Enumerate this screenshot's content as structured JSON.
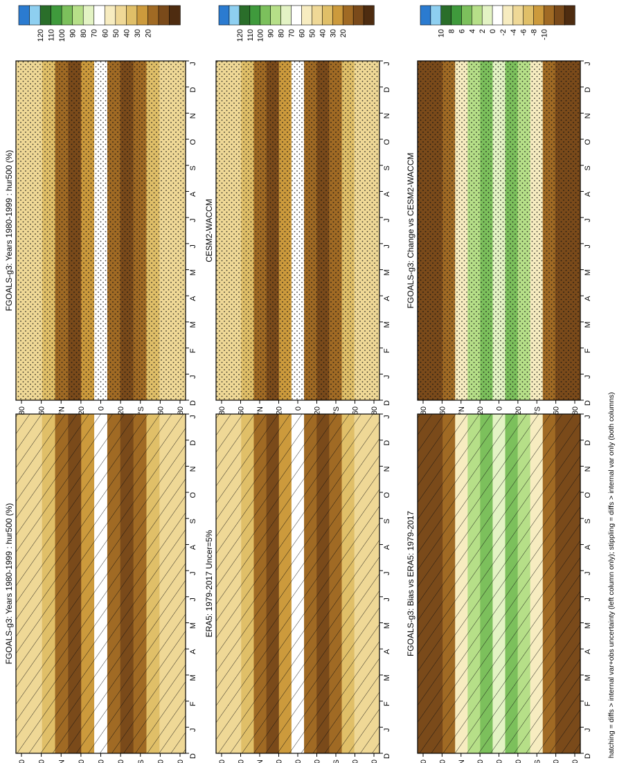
{
  "figure": {
    "footnote": "hatching = diffs > internal var+obs uncertainty (left column only); stippling = diffs > internal var only (both columns)"
  },
  "chart_data": [
    {
      "type": "heatmap",
      "title": "FGOALS-g3: Years 1980-1999 : hur500 (%)",
      "x_ticks": [
        "D",
        "J",
        "F",
        "M",
        "A",
        "M",
        "J",
        "J",
        "A",
        "S",
        "O",
        "N",
        "D",
        "J"
      ],
      "y_ticks": [
        "80",
        "60",
        "°N",
        "20",
        "0",
        "20",
        "°S",
        "60",
        "80"
      ],
      "colorbar": {
        "labels": [
          "120",
          "110",
          "100",
          "90",
          "80",
          "70",
          "60",
          "50",
          "40",
          "30",
          "20"
        ],
        "colors": [
          "#2b7bd0",
          "#8ecff0",
          "#2a6e2a",
          "#3f9a3c",
          "#7cc05c",
          "#b6df88",
          "#e3f3c4",
          "#ffffff",
          "#f7ecc0",
          "#efd896",
          "#e0bf68",
          "#cc9a3c",
          "#a06a24",
          "#7a4a1a",
          "#4e2c10"
        ]
      },
      "pattern": "hatch"
    },
    {
      "type": "heatmap",
      "title": "FGOALS-g3: Years 1980-1999 : hur500 (%)",
      "x_ticks": [
        "D",
        "J",
        "F",
        "M",
        "A",
        "M",
        "J",
        "J",
        "A",
        "S",
        "O",
        "N",
        "D",
        "J"
      ],
      "y_ticks": [
        "80",
        "60",
        "°N",
        "20",
        "0",
        "20",
        "°S",
        "60",
        "80"
      ],
      "colorbar": {
        "labels": [
          "120",
          "110",
          "100",
          "90",
          "80",
          "70",
          "60",
          "50",
          "40",
          "30",
          "20"
        ],
        "colors": [
          "#2b7bd0",
          "#8ecff0",
          "#2a6e2a",
          "#3f9a3c",
          "#7cc05c",
          "#b6df88",
          "#e3f3c4",
          "#ffffff",
          "#f7ecc0",
          "#efd896",
          "#e0bf68",
          "#cc9a3c",
          "#a06a24",
          "#7a4a1a",
          "#4e2c10"
        ]
      },
      "pattern": "dots"
    },
    {
      "type": "heatmap",
      "title": "ERA5: 1979-2017 Uncer=5%",
      "x_ticks": [
        "D",
        "J",
        "F",
        "M",
        "A",
        "M",
        "J",
        "J",
        "A",
        "S",
        "O",
        "N",
        "D",
        "J"
      ],
      "y_ticks": [
        "80",
        "60",
        "°N",
        "20",
        "0",
        "20",
        "°S",
        "60",
        "80"
      ],
      "colorbar": {
        "labels": [
          "120",
          "110",
          "100",
          "90",
          "80",
          "70",
          "60",
          "50",
          "40",
          "30",
          "20"
        ],
        "colors": [
          "#2b7bd0",
          "#8ecff0",
          "#2a6e2a",
          "#3f9a3c",
          "#7cc05c",
          "#b6df88",
          "#e3f3c4",
          "#ffffff",
          "#f7ecc0",
          "#efd896",
          "#e0bf68",
          "#cc9a3c",
          "#a06a24",
          "#7a4a1a",
          "#4e2c10"
        ]
      },
      "pattern": "hatch"
    },
    {
      "type": "heatmap",
      "title": "CESM2-WACCM",
      "x_ticks": [
        "D",
        "J",
        "F",
        "M",
        "A",
        "M",
        "J",
        "J",
        "A",
        "S",
        "O",
        "N",
        "D",
        "J"
      ],
      "y_ticks": [
        "80",
        "60",
        "°N",
        "20",
        "0",
        "20",
        "°S",
        "60",
        "80"
      ],
      "colorbar": {
        "labels": [
          "120",
          "110",
          "100",
          "90",
          "80",
          "70",
          "60",
          "50",
          "40",
          "30",
          "20"
        ],
        "colors": [
          "#2b7bd0",
          "#8ecff0",
          "#2a6e2a",
          "#3f9a3c",
          "#7cc05c",
          "#b6df88",
          "#e3f3c4",
          "#ffffff",
          "#f7ecc0",
          "#efd896",
          "#e0bf68",
          "#cc9a3c",
          "#a06a24",
          "#7a4a1a",
          "#4e2c10"
        ]
      },
      "pattern": "dots"
    },
    {
      "type": "heatmap",
      "title": "FGOALS-g3: Bias vs ERA5: 1979-2017",
      "x_ticks": [
        "D",
        "J",
        "F",
        "M",
        "A",
        "M",
        "J",
        "J",
        "A",
        "S",
        "O",
        "N",
        "D",
        "J"
      ],
      "y_ticks": [
        "80",
        "60",
        "°N",
        "20",
        "0",
        "20",
        "°S",
        "60",
        "80"
      ],
      "colorbar": {
        "labels": [
          "10",
          "8",
          "6",
          "4",
          "2",
          "0",
          "-2",
          "-4",
          "-6",
          "-8",
          "-10"
        ],
        "colors": [
          "#2b7bd0",
          "#8ecff0",
          "#2a6e2a",
          "#3f9a3c",
          "#7cc05c",
          "#b6df88",
          "#e3f3c4",
          "#ffffff",
          "#f7ecc0",
          "#efd896",
          "#e0bf68",
          "#cc9a3c",
          "#a06a24",
          "#7a4a1a",
          "#4e2c10"
        ]
      },
      "pattern": "hatch"
    },
    {
      "type": "heatmap",
      "title": "FGOALS-g3: Change vs CESM2-WACCM",
      "x_ticks": [
        "D",
        "J",
        "F",
        "M",
        "A",
        "M",
        "J",
        "J",
        "A",
        "S",
        "O",
        "N",
        "D",
        "J"
      ],
      "y_ticks": [
        "80",
        "60",
        "°N",
        "20",
        "0",
        "20",
        "°S",
        "60",
        "80"
      ],
      "colorbar": {
        "labels": [
          "10",
          "8",
          "6",
          "4",
          "2",
          "0",
          "-2",
          "-4",
          "-6",
          "-8",
          "-10"
        ],
        "colors": [
          "#2b7bd0",
          "#8ecff0",
          "#2a6e2a",
          "#3f9a3c",
          "#7cc05c",
          "#b6df88",
          "#e3f3c4",
          "#ffffff",
          "#f7ecc0",
          "#efd896",
          "#e0bf68",
          "#cc9a3c",
          "#a06a24",
          "#7a4a1a",
          "#4e2c10"
        ]
      },
      "pattern": "dots"
    }
  ]
}
